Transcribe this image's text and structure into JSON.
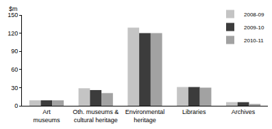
{
  "chart_data": {
    "type": "bar",
    "ylabel": "$m",
    "categories": [
      "Art\nmuseums",
      "Oth. museums &\ncultural heritage",
      "Environmental\nheritage",
      "Libraries",
      "Archives"
    ],
    "series": [
      {
        "name": "2008-09",
        "color": "#c4c4c4",
        "values": [
          9,
          29,
          129,
          31,
          6
        ]
      },
      {
        "name": "2009-10",
        "color": "#3c3c3c",
        "values": [
          9,
          26,
          120,
          31,
          6
        ]
      },
      {
        "name": "2010-11",
        "color": "#a2a2a2",
        "values": [
          9,
          21,
          120,
          30,
          3
        ]
      }
    ],
    "ylim": [
      0,
      150
    ],
    "yticks": [
      0,
      30,
      60,
      90,
      120,
      150
    ],
    "grid": false,
    "legend": "top right"
  }
}
